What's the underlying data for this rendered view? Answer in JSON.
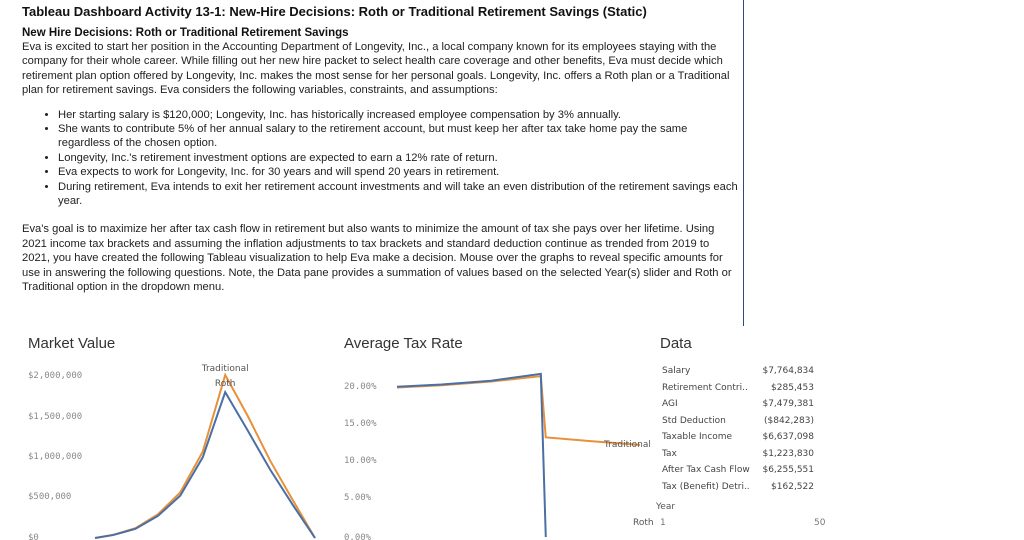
{
  "document": {
    "title": "Tableau Dashboard Activity 13-1: New-Hire Decisions: Roth or Traditional Retirement Savings (Static)",
    "subtitle": "New Hire Decisions: Roth or Traditional Retirement Savings",
    "intro": "Eva is excited to start her position in the Accounting Department of Longevity, Inc., a local company known for its employees staying with the company for their whole career. While filling out her new hire packet to select health care coverage and other benefits, Eva must decide which retirement plan option offered by Longevity, Inc. makes the most sense for her personal goals. Longevity, Inc. offers a Roth plan or a Traditional plan for retirement savings. Eva considers the following variables, constraints, and assumptions:",
    "bullets": [
      "Her starting salary is $120,000; Longevity, Inc. has historically increased employee compensation by 3% annually.",
      "She wants to contribute 5% of her annual salary to the retirement account, but must keep her after tax take home pay the same regardless of the chosen option.",
      "Longevity, Inc.'s retirement investment options are expected to earn a 12% rate of return.",
      "Eva expects to work for Longevity, Inc. for 30 years and will spend 20 years in retirement.",
      "During retirement, Eva intends to exit her retirement account investments and will take an even distribution of the retirement savings each year."
    ],
    "goal": "Eva's goal is to maximize her after tax cash flow in retirement but also wants to minimize the amount of tax she pays over her lifetime. Using 2021 income tax brackets and assuming the inflation adjustments to tax brackets and standard deduction continue as trended from 2019 to 2021, you have created the following Tableau visualization to help Eva make a decision. Mouse over the graphs to reveal specific amounts for use in answering the following questions. Note, the Data pane provides a summation of values based on the selected Year(s) slider and Roth or Traditional option in the dropdown menu."
  },
  "dashboard": {
    "market_value_title": "Market Value",
    "avg_tax_title": "Average Tax Rate",
    "data_title": "Data",
    "colors": {
      "traditional": "#e8903a",
      "roth": "#4a6fa5"
    }
  },
  "chart_data": [
    {
      "type": "line",
      "title": "Market Value",
      "yticks": [
        "$2,000,000",
        "$1,500,000",
        "$1,000,000",
        "$500,000",
        "$0"
      ],
      "ylim": [
        0,
        2000000
      ],
      "xlim": [
        1,
        50
      ],
      "series": [
        {
          "name": "Traditional",
          "x": [
            1,
            5,
            10,
            15,
            20,
            25,
            30,
            35,
            40,
            45,
            50
          ],
          "y": [
            0,
            38000,
            120000,
            290000,
            560000,
            1060000,
            2000000,
            1500000,
            950000,
            470000,
            0
          ]
        },
        {
          "name": "Roth",
          "x": [
            1,
            5,
            10,
            15,
            20,
            25,
            30,
            35,
            40,
            45,
            50
          ],
          "y": [
            0,
            36000,
            112000,
            270000,
            520000,
            990000,
            1790000,
            1320000,
            840000,
            410000,
            0
          ]
        }
      ]
    },
    {
      "type": "line",
      "title": "Average Tax Rate",
      "yticks": [
        "20.00%",
        "15.00%",
        "10.00%",
        "5.00%",
        "0.00%"
      ],
      "ylim": [
        0,
        0.25
      ],
      "xlim": [
        1,
        50
      ],
      "series": [
        {
          "name": "Traditional",
          "x": [
            1,
            10,
            20,
            30,
            31,
            40,
            50
          ],
          "y": [
            0.198,
            0.201,
            0.206,
            0.213,
            0.132,
            0.127,
            0.122
          ]
        },
        {
          "name": "Roth",
          "x": [
            1,
            10,
            20,
            30,
            31
          ],
          "y": [
            0.199,
            0.202,
            0.207,
            0.216,
            0.0
          ]
        }
      ]
    }
  ],
  "data_pane": {
    "rows": [
      {
        "label": "Salary",
        "value": "$7,764,834"
      },
      {
        "label": "Retirement Contri..",
        "value": "$285,453"
      },
      {
        "label": "AGI",
        "value": "$7,479,381"
      },
      {
        "label": "Std Deduction",
        "value": "($842,283)"
      },
      {
        "label": "Taxable Income",
        "value": "$6,637,098"
      },
      {
        "label": "Tax",
        "value": "$1,223,830"
      },
      {
        "label": "After Tax Cash Flow",
        "value": "$6,255,551"
      },
      {
        "label": "Tax (Benefit) Detri..",
        "value": "$162,522"
      }
    ],
    "year_label": "Year",
    "year_min": "1",
    "year_max": "50",
    "option_value": "Roth",
    "traditional_label": "Traditional"
  }
}
